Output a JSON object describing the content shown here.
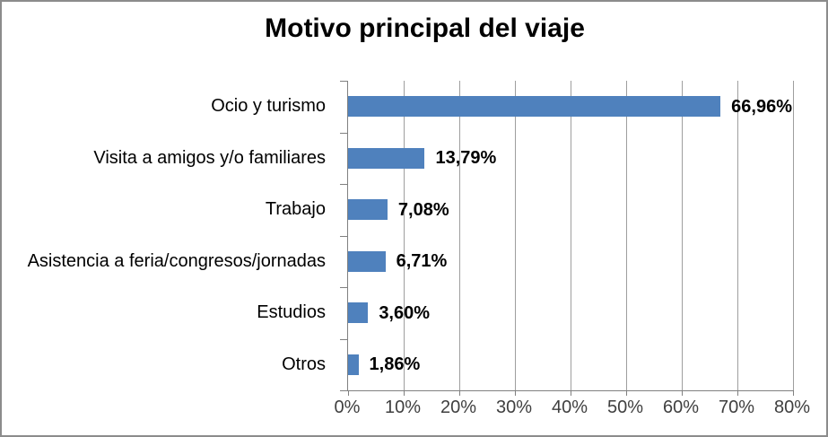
{
  "title": "Motivo principal del viaje",
  "chart_data": {
    "type": "bar",
    "orientation": "horizontal",
    "title": "Motivo principal del viaje",
    "categories": [
      "Ocio y turismo",
      "Visita a amigos y/o familiares",
      "Trabajo",
      "Asistencia a feria/congresos/jornadas",
      "Estudios",
      "Otros"
    ],
    "values": [
      66.96,
      13.79,
      7.08,
      6.71,
      3.6,
      1.86
    ],
    "value_labels": [
      "66,96%",
      "13,79%",
      "7,08%",
      "6,71%",
      "3,60%",
      "1,86%"
    ],
    "x_ticks": [
      "0%",
      "10%",
      "20%",
      "30%",
      "40%",
      "50%",
      "60%",
      "70%",
      "80%"
    ],
    "xlim": [
      0,
      80
    ],
    "xlabel": "",
    "ylabel": "",
    "grid": true,
    "legend": "none",
    "bar_color": "#4F81BD",
    "gridline_color": "#9E9E9E",
    "axis_color": "#808080",
    "text_color": "#000000",
    "tick_label_color": "#3F3F3F"
  }
}
